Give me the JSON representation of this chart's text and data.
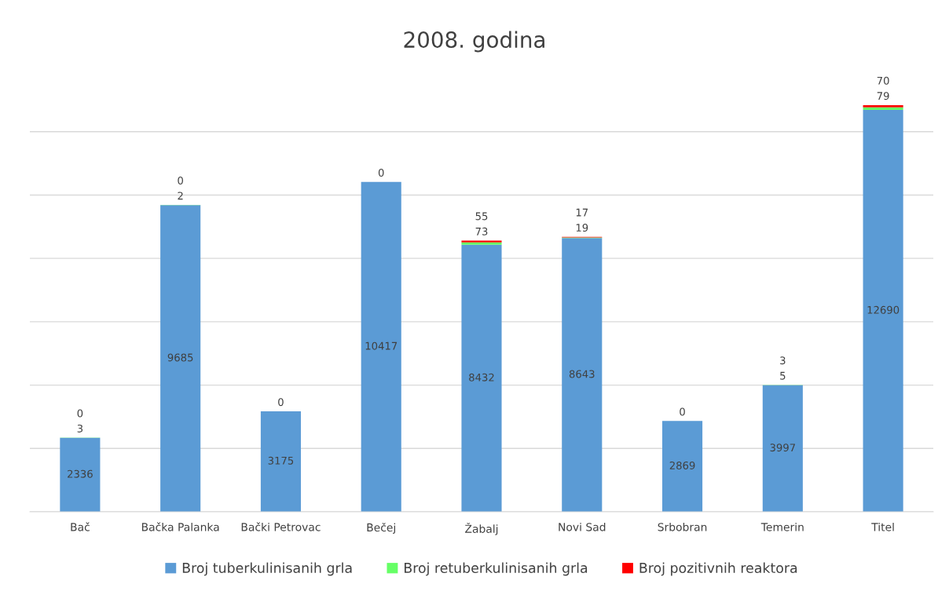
{
  "chart_data": {
    "type": "bar",
    "title": "2008. godina",
    "stacked": true,
    "grid": "y",
    "legend": "bottom",
    "categories": [
      "Bač",
      "Bačka Palanka",
      "Bački Petrovac",
      "Bečej",
      "Žabalj",
      "Novi Sad",
      "Srbobran",
      "Temerin",
      "Titel"
    ],
    "series": [
      {
        "name": "Broj tuberkulinisanih grla",
        "color": "#5b9bd5",
        "values": [
          2336,
          9685,
          3175,
          10417,
          8432,
          8643,
          2869,
          3997,
          12690
        ],
        "value_labels": [
          "2336",
          "9685",
          "3175",
          "10417",
          "8432",
          "8643",
          "2869",
          "3997",
          "12690"
        ]
      },
      {
        "name": "Broj retuberkulinisanih grla",
        "color": "#66ff66",
        "values": [
          3,
          2,
          0,
          0,
          73,
          19,
          0,
          5,
          79
        ],
        "value_labels": [
          "3",
          "2",
          null,
          null,
          "73",
          "19",
          null,
          "5",
          "79"
        ]
      },
      {
        "name": "Broj pozitivnih reaktora",
        "color": "#ff0000",
        "values": [
          0,
          0,
          0,
          0,
          55,
          17,
          0,
          3,
          70
        ],
        "value_labels": [
          "0",
          "0",
          "0",
          "0",
          "55",
          "17",
          "0",
          "3",
          "70"
        ]
      }
    ]
  }
}
